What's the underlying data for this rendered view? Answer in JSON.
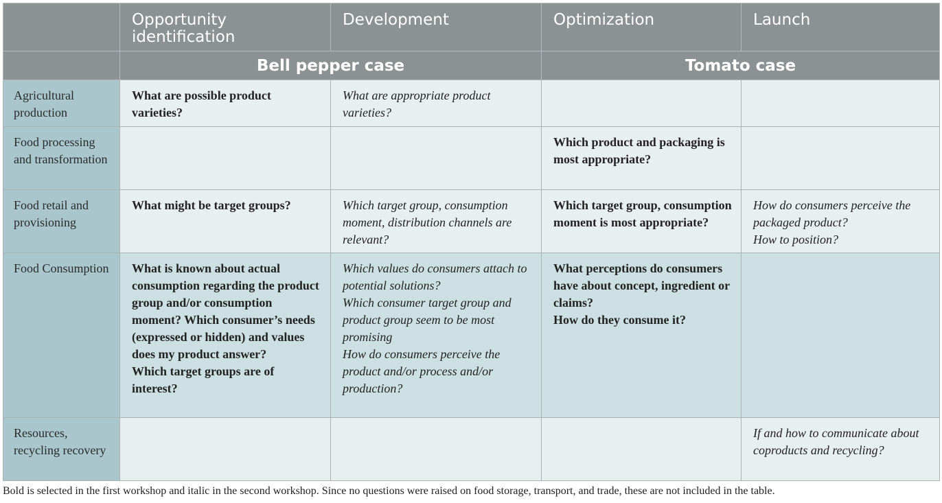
{
  "header": {
    "phases": [
      "Opportunity identification",
      "Development",
      "Optimization",
      "Launch"
    ],
    "cases": [
      "Bell pepper case",
      "Tomato case"
    ]
  },
  "rows": [
    {
      "label": "Agricultural production",
      "cells": [
        {
          "style": "bold",
          "lines": [
            "What are possible product varieties?"
          ]
        },
        {
          "style": "italic",
          "lines": [
            "What are appropriate product varieties?"
          ]
        },
        {
          "style": "",
          "lines": []
        },
        {
          "style": "",
          "lines": []
        }
      ]
    },
    {
      "label": "Food processing and transformation",
      "cells": [
        {
          "style": "",
          "lines": []
        },
        {
          "style": "",
          "lines": []
        },
        {
          "style": "bold",
          "lines": [
            "Which product and packaging is most appropriate?"
          ]
        },
        {
          "style": "",
          "lines": []
        }
      ]
    },
    {
      "label": "Food retail and provisioning",
      "cells": [
        {
          "style": "bold",
          "lines": [
            "What might be target groups?"
          ]
        },
        {
          "style": "italic",
          "lines": [
            "Which target group, consumption moment, distribution channels are relevant?"
          ]
        },
        {
          "style": "bold",
          "lines": [
            "Which target group, consumption moment is most appropriate?"
          ]
        },
        {
          "style": "italic",
          "lines": [
            "How do consumers perceive the packaged product?",
            "How to position?"
          ]
        }
      ]
    },
    {
      "label": "Food Consumption",
      "cells": [
        {
          "style": "bold",
          "lines": [
            "What is known about actual consumption regarding the product group and/or consumption moment? Which consumer’s needs (expressed or hidden) and values does my product answer?",
            "Which target groups are of interest?"
          ]
        },
        {
          "style": "italic",
          "lines": [
            "Which values do consumers attach to potential solutions?",
            "Which consumer target group and product group seem to be most promising",
            "How do consumers perceive the product and/or process and/or production?"
          ]
        },
        {
          "style": "bold",
          "lines": [
            "What perceptions do consumers have about concept, ingredient or claims?",
            "How do they consume it?"
          ]
        },
        {
          "style": "",
          "lines": []
        }
      ]
    },
    {
      "label": "Resources, recycling recovery",
      "cells": [
        {
          "style": "",
          "lines": []
        },
        {
          "style": "",
          "lines": []
        },
        {
          "style": "",
          "lines": []
        },
        {
          "style": "italic",
          "lines": [
            "If and how to communicate about coproducts and recycling?"
          ]
        }
      ]
    }
  ],
  "footnote": "Bold is selected in the first workshop and italic in the second workshop. Since no questions were raised on food storage, transport, and trade, these are not included in the table."
}
